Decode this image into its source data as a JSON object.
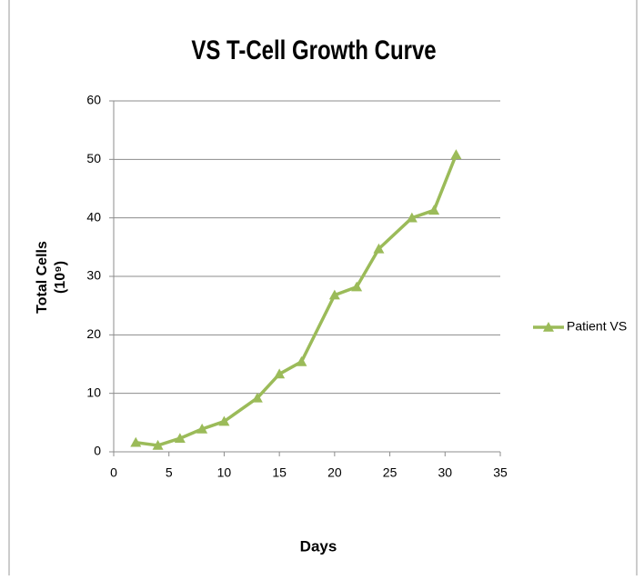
{
  "chart_data": {
    "type": "line",
    "title": "VS T-Cell Growth Curve",
    "x_label": "Days",
    "y_label": [
      "Total Cells",
      "(10⁹)"
    ],
    "x": [
      2,
      4,
      6,
      8,
      10,
      13,
      15,
      17,
      20,
      22,
      24,
      27,
      29,
      31
    ],
    "series": [
      {
        "name": "Patient VS",
        "color": "#9bbb59",
        "values": [
          1.6,
          1.1,
          2.3,
          3.9,
          5.2,
          9.2,
          13.3,
          15.4,
          26.8,
          28.2,
          34.7,
          40,
          41.3,
          50.8
        ]
      }
    ],
    "xlim": [
      0,
      35
    ],
    "xticks": [
      0,
      5,
      10,
      15,
      20,
      25,
      30,
      35
    ],
    "ylim": [
      0,
      60
    ],
    "yticks": [
      0,
      10,
      20,
      30,
      40,
      50,
      60
    ],
    "grid": true,
    "legend": "right"
  }
}
